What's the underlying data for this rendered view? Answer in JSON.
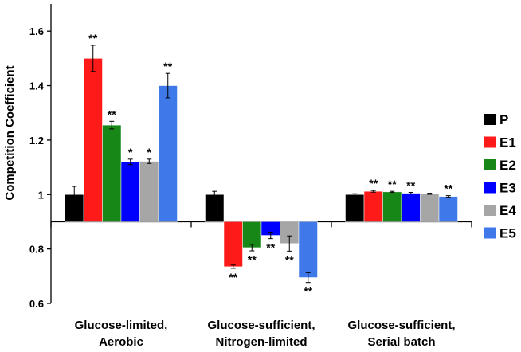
{
  "chart_data": {
    "type": "bar",
    "ylabel": "Competition Coefficient",
    "ylim": [
      0.6,
      1.7
    ],
    "baseline": 0.9,
    "yticks": [
      0.6,
      0.8,
      1,
      1.2,
      1.4,
      1.6
    ],
    "ytick_labels": [
      "0.6",
      "0.8",
      "1",
      "1.2",
      "1.4",
      "1.6"
    ],
    "grid": false,
    "legend_position": "right",
    "groups": [
      {
        "label_line1": "Glucose-limited,",
        "label_line2": "Aerobic"
      },
      {
        "label_line1": "Glucose-sufficient,",
        "label_line2": "Nitrogen-limited"
      },
      {
        "label_line1": "Glucose-sufficient,",
        "label_line2": "Serial batch"
      }
    ],
    "series": [
      {
        "name": "P",
        "color": "#000000",
        "values": [
          1.0,
          1.0,
          1.0
        ],
        "errors": [
          0.03,
          0.012,
          0.003
        ],
        "significance": [
          "",
          "",
          ""
        ]
      },
      {
        "name": "E1",
        "color": "#ff1a1a",
        "values": [
          1.5,
          0.735,
          1.012
        ],
        "errors": [
          0.048,
          0.006,
          0.003
        ],
        "significance": [
          "**",
          "**",
          "**"
        ]
      },
      {
        "name": "E2",
        "color": "#178717",
        "values": [
          1.255,
          0.805,
          1.01
        ],
        "errors": [
          0.014,
          0.012,
          0.002
        ],
        "significance": [
          "**",
          "**",
          "**"
        ]
      },
      {
        "name": "E3",
        "color": "#0000ff",
        "values": [
          1.12,
          0.85,
          1.005
        ],
        "errors": [
          0.01,
          0.012,
          0.003
        ],
        "significance": [
          "*",
          "**",
          "**"
        ]
      },
      {
        "name": "E4",
        "color": "#a6a6a6",
        "values": [
          1.122,
          0.82,
          1.003
        ],
        "errors": [
          0.008,
          0.028,
          0.002
        ],
        "significance": [
          "*",
          "**",
          ""
        ]
      },
      {
        "name": "E5",
        "color": "#3f78e8",
        "values": [
          1.4,
          0.695,
          0.993
        ],
        "errors": [
          0.045,
          0.018,
          0.003
        ],
        "significance": [
          "**",
          "**",
          "**"
        ]
      }
    ]
  }
}
